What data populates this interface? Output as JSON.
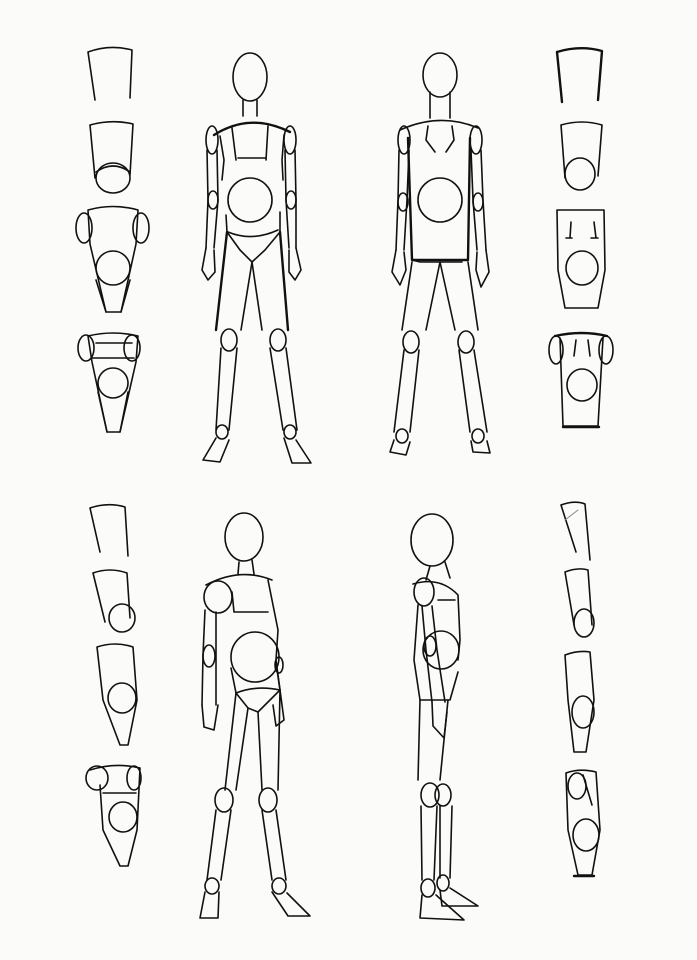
{
  "page": {
    "paper_color": "#fbfbfa",
    "ink_color": "#111111"
  },
  "sections": [
    {
      "view": "front",
      "row": 1,
      "torso_steps": 4
    },
    {
      "view": "back",
      "row": 1,
      "torso_steps": 4
    },
    {
      "view": "three-quarter",
      "row": 2,
      "torso_steps": 4
    },
    {
      "view": "side",
      "row": 2,
      "torso_steps": 4
    }
  ]
}
